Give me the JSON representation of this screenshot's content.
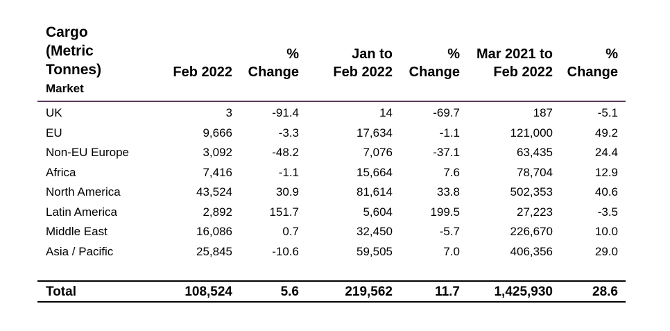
{
  "table": {
    "title_lines": [
      "Cargo",
      "(Metric",
      "Tonnes)"
    ],
    "market_label": "Market",
    "columns": [
      [
        "Feb 2022"
      ],
      [
        "%",
        "Change"
      ],
      [
        "Jan to",
        "Feb 2022"
      ],
      [
        "%",
        "Change"
      ],
      [
        "Mar 2021 to",
        "Feb 2022"
      ],
      [
        "%",
        "Change"
      ]
    ],
    "rows": [
      [
        "UK",
        "3",
        "-91.4",
        "14",
        "-69.7",
        "187",
        "-5.1"
      ],
      [
        "EU",
        "9,666",
        "-3.3",
        "17,634",
        "-1.1",
        "121,000",
        "49.2"
      ],
      [
        "Non-EU Europe",
        "3,092",
        "-48.2",
        "7,076",
        "-37.1",
        "63,435",
        "24.4"
      ],
      [
        "Africa",
        "7,416",
        "-1.1",
        "15,664",
        "7.6",
        "78,704",
        "12.9"
      ],
      [
        "North America",
        "43,524",
        "30.9",
        "81,614",
        "33.8",
        "502,353",
        "40.6"
      ],
      [
        "Latin America",
        "2,892",
        "151.7",
        "5,604",
        "199.5",
        "27,223",
        "-3.5"
      ],
      [
        "Middle East",
        "16,086",
        "0.7",
        "32,450",
        "-5.7",
        "226,670",
        "10.0"
      ],
      [
        "Asia / Pacific",
        "25,845",
        "-10.6",
        "59,505",
        "7.0",
        "406,356",
        "29.0"
      ]
    ],
    "total": [
      "Total",
      "108,524",
      "5.6",
      "219,562",
      "11.7",
      "1,425,930",
      "28.6"
    ]
  }
}
